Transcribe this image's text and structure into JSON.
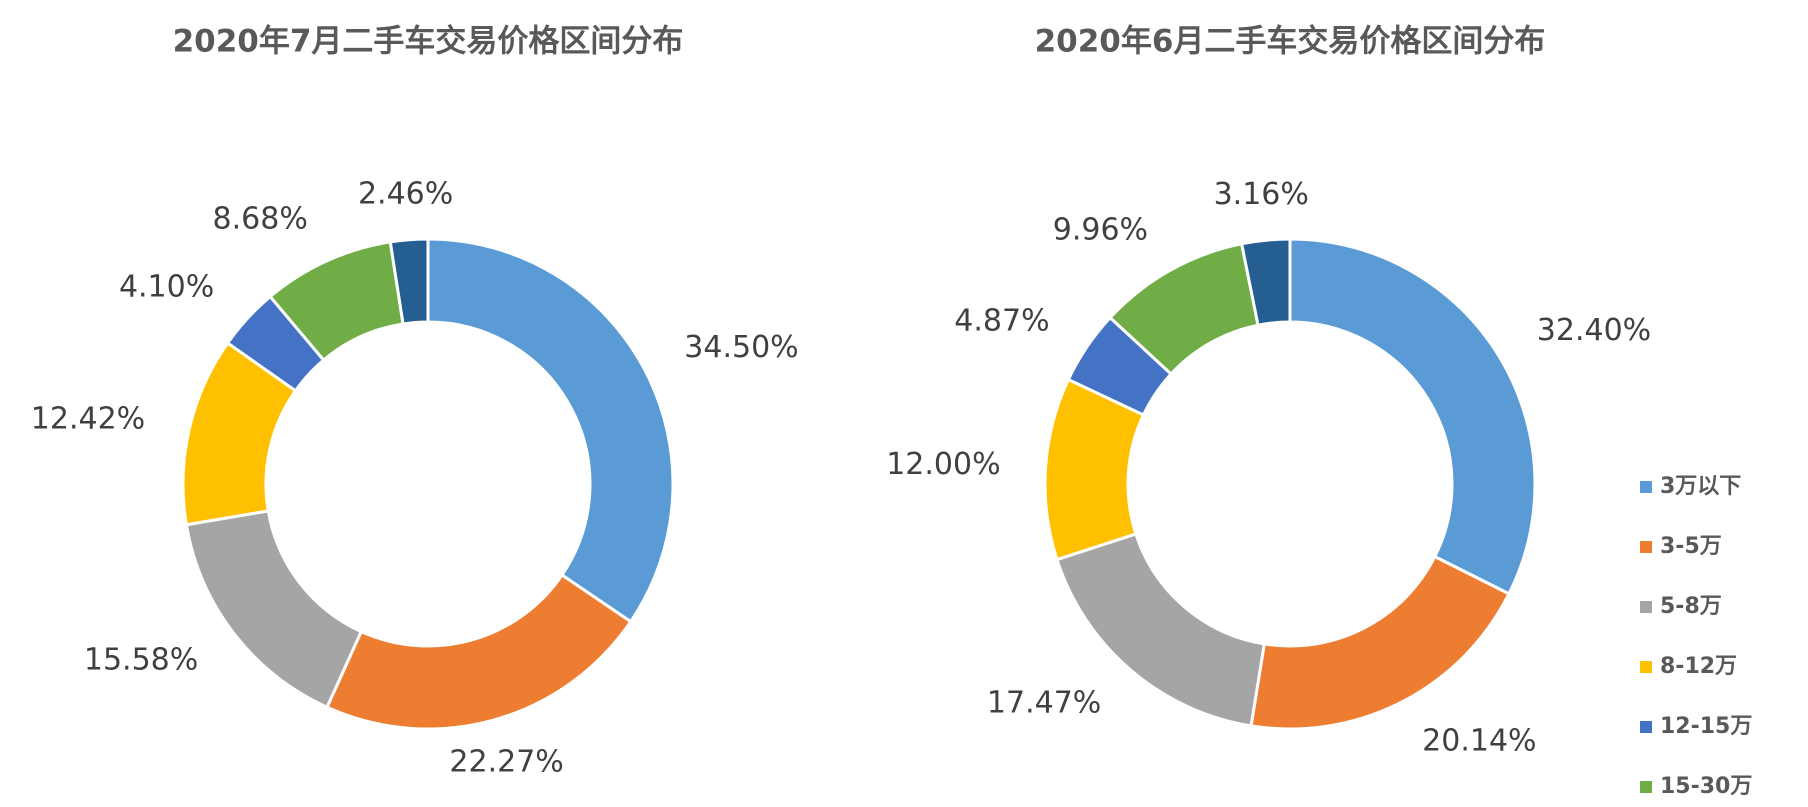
{
  "chart_data": [
    {
      "type": "donut",
      "title": "2020年7月二手车交易价格区间分布",
      "values": [
        34.5,
        22.27,
        15.58,
        12.42,
        4.1,
        8.68,
        2.46
      ],
      "value_labels": [
        "34.50%",
        "22.27%",
        "15.58%",
        "12.42%",
        "4.10%",
        "8.68%",
        "2.46%"
      ],
      "colors": [
        "#5b9bd5",
        "#ed7d31",
        "#a5a5a5",
        "#ffc000",
        "#4472c4",
        "#70ad47",
        "#255e91"
      ]
    },
    {
      "type": "donut",
      "title": "2020年6月二手车交易价格区间分布",
      "categories": [
        "3万以下",
        "3-5万",
        "5-8万",
        "8-12万",
        "12-15万",
        "15-30万",
        null
      ],
      "values": [
        32.4,
        20.14,
        17.47,
        12.0,
        4.87,
        9.96,
        3.16
      ],
      "value_labels": [
        "32.40%",
        "20.14%",
        "17.47%",
        "12.00%",
        "4.87%",
        "9.96%",
        "3.16%"
      ],
      "colors": [
        "#5b9bd5",
        "#ed7d31",
        "#a5a5a5",
        "#ffc000",
        "#4472c4",
        "#70ad47",
        "#255e91"
      ],
      "legend": "right"
    }
  ]
}
